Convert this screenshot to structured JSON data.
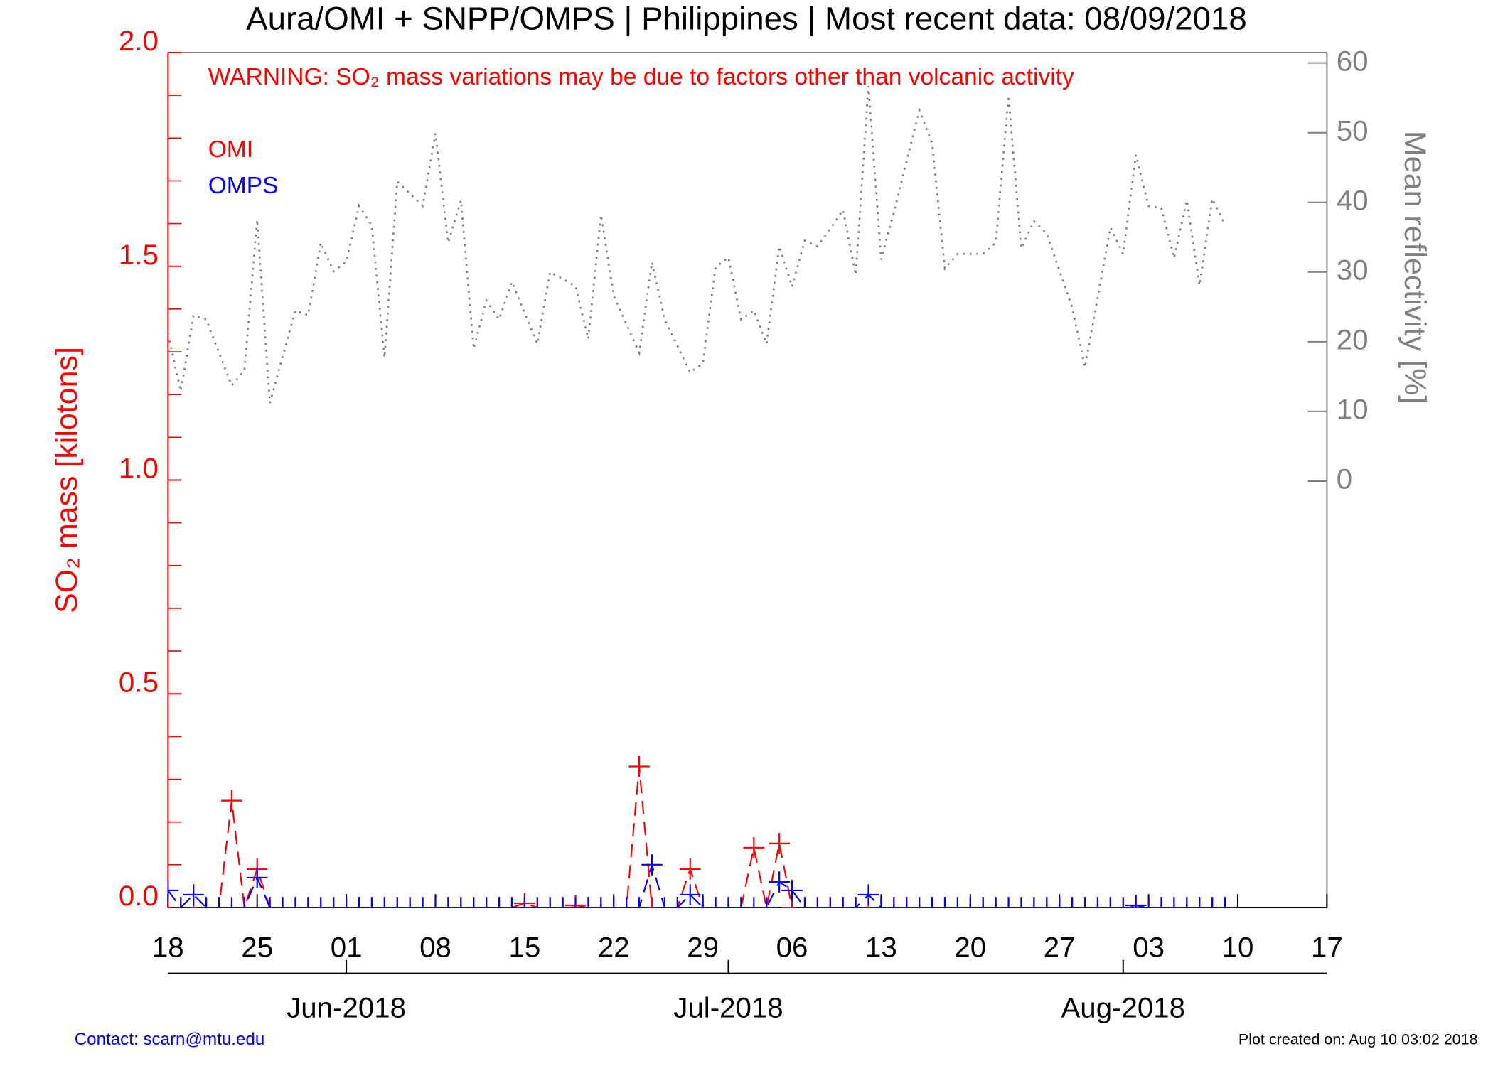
{
  "chart_data": {
    "type": "line",
    "title": "Aura/OMI + SNPP/OMPS | Philippines | Most recent data: 08/09/2018",
    "warning": "WARNING: SO₂ mass variations may be due to factors other than volcanic activity",
    "y_label": "SO₂ mass [kilotons]",
    "y2_label": "Mean reflectivity [%]",
    "contact": "Contact: scarn@mtu.edu",
    "created": "Plot created on: Aug 10 03:02 2018",
    "x": [
      "2018-05-18",
      "2018-05-19",
      "2018-05-20",
      "2018-05-21",
      "2018-05-22",
      "2018-05-23",
      "2018-05-24",
      "2018-05-25",
      "2018-05-26",
      "2018-05-27",
      "2018-05-28",
      "2018-05-29",
      "2018-05-30",
      "2018-05-31",
      "2018-06-01",
      "2018-06-02",
      "2018-06-03",
      "2018-06-04",
      "2018-06-05",
      "2018-06-06",
      "2018-06-07",
      "2018-06-08",
      "2018-06-09",
      "2018-06-10",
      "2018-06-11",
      "2018-06-12",
      "2018-06-13",
      "2018-06-14",
      "2018-06-15",
      "2018-06-16",
      "2018-06-17",
      "2018-06-18",
      "2018-06-19",
      "2018-06-20",
      "2018-06-21",
      "2018-06-22",
      "2018-06-23",
      "2018-06-24",
      "2018-06-25",
      "2018-06-26",
      "2018-06-27",
      "2018-06-28",
      "2018-06-29",
      "2018-06-30",
      "2018-07-01",
      "2018-07-02",
      "2018-07-03",
      "2018-07-04",
      "2018-07-05",
      "2018-07-06",
      "2018-07-07",
      "2018-07-08",
      "2018-07-09",
      "2018-07-10",
      "2018-07-11",
      "2018-07-12",
      "2018-07-13",
      "2018-07-14",
      "2018-07-15",
      "2018-07-16",
      "2018-07-17",
      "2018-07-18",
      "2018-07-19",
      "2018-07-20",
      "2018-07-21",
      "2018-07-22",
      "2018-07-23",
      "2018-07-24",
      "2018-07-25",
      "2018-07-26",
      "2018-07-27",
      "2018-07-28",
      "2018-07-29",
      "2018-07-30",
      "2018-07-31",
      "2018-08-01",
      "2018-08-02",
      "2018-08-03",
      "2018-08-04",
      "2018-08-05",
      "2018-08-06",
      "2018-08-07",
      "2018-08-08",
      "2018-08-09"
    ],
    "series": [
      {
        "name": "OMI",
        "color": "#ff0000",
        "values": [
          0,
          0,
          0,
          0,
          0,
          0.25,
          0,
          0.09,
          0,
          0,
          0,
          0,
          0,
          0,
          0,
          0,
          0,
          0,
          0,
          0,
          0,
          0,
          0,
          0,
          0,
          0,
          0,
          0,
          0.01,
          0,
          0,
          0,
          0.005,
          0,
          0,
          0,
          0,
          0.33,
          0,
          0,
          0,
          0.09,
          0,
          0,
          0,
          0,
          0.14,
          0,
          0.15,
          0,
          0,
          0,
          0,
          0,
          0,
          0,
          0,
          0,
          0,
          0,
          0,
          0,
          0,
          0,
          0,
          0,
          0,
          0,
          0,
          0,
          0,
          0,
          0,
          0,
          0,
          0,
          0,
          0,
          0,
          0,
          0,
          0,
          0,
          0
        ]
      },
      {
        "name": "OMPS",
        "color": "#0000ff",
        "values": [
          0.04,
          0,
          0.03,
          0,
          0,
          0,
          0,
          0.07,
          0,
          0,
          0,
          0,
          0,
          0,
          0,
          0,
          0,
          0,
          0,
          0,
          0,
          0,
          0,
          0,
          0,
          0,
          0,
          0,
          0,
          0,
          0,
          0,
          0,
          0,
          0,
          0,
          0,
          0,
          0.1,
          0,
          0,
          0.03,
          0,
          0,
          0,
          0,
          0,
          0,
          0.06,
          0.04,
          0,
          0,
          0,
          0,
          0,
          0.03,
          0,
          0,
          0,
          0,
          0,
          0,
          0,
          0,
          0,
          0,
          0,
          0,
          0,
          0,
          0,
          0,
          0,
          0,
          0,
          0,
          0.005,
          0,
          0,
          0,
          0,
          0,
          0,
          0
        ]
      },
      {
        "axis": "y2",
        "color": "#808080",
        "x": [
          "2018-05-18",
          "2018-05-19",
          "2018-05-20",
          "2018-05-21",
          "2018-05-23",
          "2018-05-24",
          "2018-05-25",
          "2018-05-26",
          "2018-05-28",
          "2018-05-29",
          "2018-05-30",
          "2018-05-31",
          "2018-06-01",
          "2018-06-02",
          "2018-06-03",
          "2018-06-04",
          "2018-06-05",
          "2018-06-07",
          "2018-06-08",
          "2018-06-09",
          "2018-06-10",
          "2018-06-11",
          "2018-06-12",
          "2018-06-13",
          "2018-06-14",
          "2018-06-16",
          "2018-06-17",
          "2018-06-19",
          "2018-06-20",
          "2018-06-21",
          "2018-06-22",
          "2018-06-24",
          "2018-06-25",
          "2018-06-26",
          "2018-06-28",
          "2018-06-29",
          "2018-06-30",
          "2018-07-01",
          "2018-07-02",
          "2018-07-03",
          "2018-07-04",
          "2018-07-05",
          "2018-07-06",
          "2018-07-07",
          "2018-07-08",
          "2018-07-09",
          "2018-07-10",
          "2018-07-11",
          "2018-07-12",
          "2018-07-13",
          "2018-07-14",
          "2018-07-16",
          "2018-07-17",
          "2018-07-18",
          "2018-07-19",
          "2018-07-21",
          "2018-07-22",
          "2018-07-23",
          "2018-07-24",
          "2018-07-25",
          "2018-07-26",
          "2018-07-28",
          "2018-07-29",
          "2018-07-31",
          "2018-08-01",
          "2018-08-02",
          "2018-08-03",
          "2018-08-04",
          "2018-08-05",
          "2018-08-06",
          "2018-08-07",
          "2018-08-08",
          "2018-08-09"
        ],
        "values": [
          21.1,
          12.9,
          23.8,
          23.2,
          13.7,
          15.9,
          37.5,
          11.2,
          24.5,
          23.8,
          34.2,
          30.1,
          31.5,
          39.5,
          36.7,
          17.7,
          43,
          39.5,
          49.9,
          34.2,
          40.3,
          19,
          25.9,
          23.2,
          28.6,
          19.7,
          30,
          28,
          20.4,
          38.2,
          26.6,
          18.4,
          31.4,
          23.2,
          15.6,
          16.9,
          30.7,
          32.1,
          23.2,
          24.5,
          19.7,
          33.7,
          27.9,
          34.5,
          33.7,
          36.2,
          38.9,
          29.6,
          56.7,
          31.8,
          38.6,
          53.2,
          48.5,
          30.5,
          32.6,
          32.6,
          34.2,
          55.3,
          33.4,
          37.3,
          35.5,
          24.9,
          16.3,
          36.4,
          32.6,
          46.8,
          39.5,
          39.2,
          32,
          40.3,
          28.1,
          40.5,
          36.8
        ]
      }
    ],
    "xlim": [
      "2018-05-18",
      "2018-08-17"
    ],
    "xticks": [
      {
        "value": "2018-05-18",
        "label": "18"
      },
      {
        "value": "2018-05-25",
        "label": "25"
      },
      {
        "value": "2018-06-01",
        "label": "01"
      },
      {
        "value": "2018-06-08",
        "label": "08"
      },
      {
        "value": "2018-06-15",
        "label": "15"
      },
      {
        "value": "2018-06-22",
        "label": "22"
      },
      {
        "value": "2018-06-29",
        "label": "29"
      },
      {
        "value": "2018-07-06",
        "label": "06"
      },
      {
        "value": "2018-07-13",
        "label": "13"
      },
      {
        "value": "2018-07-20",
        "label": "20"
      },
      {
        "value": "2018-07-27",
        "label": "27"
      },
      {
        "value": "2018-08-03",
        "label": "03"
      },
      {
        "value": "2018-08-10",
        "label": "10"
      },
      {
        "value": "2018-08-17",
        "label": "17"
      }
    ],
    "month_ticks": [
      {
        "value": "2018-06-01",
        "label": "Jun-2018"
      },
      {
        "value": "2018-07-01",
        "label": "Jul-2018"
      },
      {
        "value": "2018-08-01",
        "label": "Aug-2018"
      }
    ],
    "ylim": [
      0,
      2.0
    ],
    "yticks": [
      {
        "value": 0,
        "label": "0.0"
      },
      0.5,
      {
        "value": 1,
        "label": "1.0"
      },
      1.5,
      {
        "value": 2,
        "label": "2.0"
      }
    ],
    "y2lim": [
      -61.2,
      61.5
    ],
    "y2ticks": [
      0,
      10,
      20,
      30,
      40,
      50,
      60
    ]
  }
}
